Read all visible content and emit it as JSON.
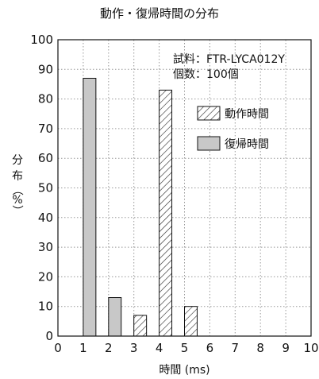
{
  "chart_data": {
    "type": "bar",
    "title": "動作・復帰時間の分布",
    "xlabel": "時間 (ms)",
    "ylabel_chars": [
      "分",
      "布",
      "（",
      "%",
      "）"
    ],
    "xlim": [
      0,
      10
    ],
    "ylim": [
      0,
      100
    ],
    "xticks": [
      0,
      1,
      2,
      3,
      4,
      5,
      6,
      7,
      8,
      9,
      10
    ],
    "yticks": [
      0,
      10,
      20,
      30,
      40,
      50,
      60,
      70,
      80,
      90,
      100
    ],
    "grid": "dotted",
    "annotations": [
      "試料：FTR-LYCA012Y",
      "個数：100個"
    ],
    "legend_position": "top-right",
    "series": [
      {
        "name": "動作時間",
        "pattern": "hatched",
        "bars": [
          {
            "x0": 3.0,
            "x1": 3.5,
            "value": 7
          },
          {
            "x0": 4.0,
            "x1": 4.5,
            "value": 83
          },
          {
            "x0": 5.0,
            "x1": 5.5,
            "value": 10
          }
        ]
      },
      {
        "name": "復帰時間",
        "pattern": "solid",
        "color": "#c8c8c8",
        "bars": [
          {
            "x0": 1.0,
            "x1": 1.5,
            "value": 87
          },
          {
            "x0": 2.0,
            "x1": 2.5,
            "value": 13
          }
        ]
      }
    ]
  }
}
